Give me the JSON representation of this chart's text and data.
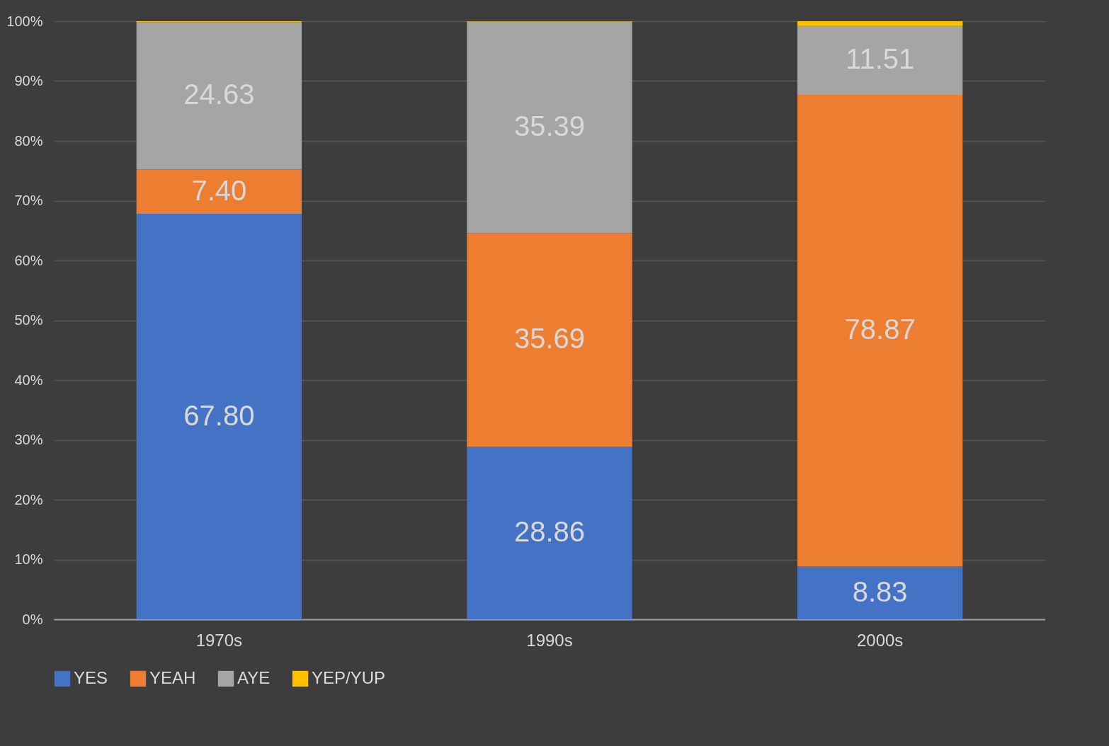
{
  "chart_data": {
    "type": "bar",
    "stacked": true,
    "categories": [
      "1970s",
      "1990s",
      "2000s"
    ],
    "series": [
      {
        "name": "YES",
        "color": "#4472c4",
        "values": [
          67.8,
          28.86,
          8.83
        ],
        "value_labels": [
          "67.80",
          "28.86",
          "8.83"
        ]
      },
      {
        "name": "YEAH",
        "color": "#ed7d31",
        "values": [
          7.4,
          35.69,
          78.87
        ],
        "value_labels": [
          "7.40",
          "35.69",
          "78.87"
        ]
      },
      {
        "name": "AYE",
        "color": "#a5a5a5",
        "values": [
          24.63,
          35.39,
          11.51
        ],
        "value_labels": [
          "24.63",
          "35.39",
          "11.51"
        ]
      },
      {
        "name": "YEP/YUP",
        "color": "#ffc000",
        "values": [
          0.17,
          0.06,
          0.79
        ],
        "value_labels": [
          null,
          null,
          null
        ]
      }
    ],
    "ylim": [
      0,
      100
    ],
    "yticks": [
      {
        "value": 0,
        "label": "0%"
      },
      {
        "value": 10,
        "label": "10%"
      },
      {
        "value": 20,
        "label": "20%"
      },
      {
        "value": 30,
        "label": "30%"
      },
      {
        "value": 40,
        "label": "40%"
      },
      {
        "value": 50,
        "label": "50%"
      },
      {
        "value": 60,
        "label": "60%"
      },
      {
        "value": 70,
        "label": "70%"
      },
      {
        "value": 80,
        "label": "80%"
      },
      {
        "value": 90,
        "label": "90%"
      },
      {
        "value": 100,
        "label": "100%"
      }
    ],
    "grid": "y",
    "legend": "bottom"
  }
}
